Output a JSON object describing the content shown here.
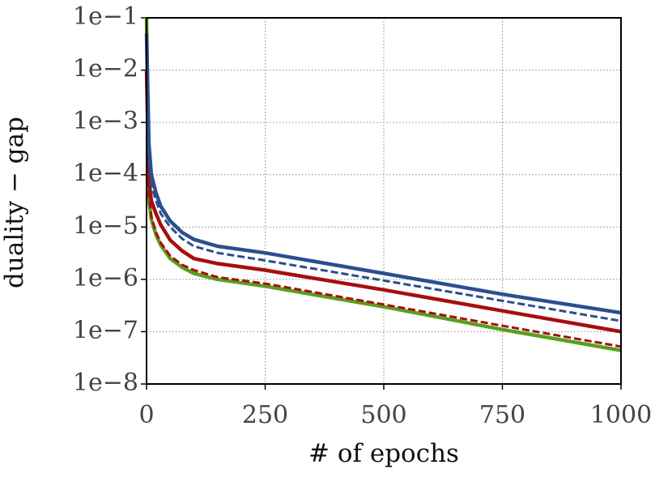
{
  "chart_data": {
    "type": "line",
    "xlabel": "# of epochs",
    "ylabel": "duality − gap",
    "yscale": "log",
    "grid": true,
    "x": [
      0,
      5,
      10,
      20,
      30,
      50,
      75,
      100,
      150,
      250,
      500,
      750,
      1000
    ],
    "series": [
      {
        "color": "#5a9e1e",
        "dash": false,
        "values": [
          0.1,
          3.5e-05,
          1.4e-05,
          7.1e-06,
          4.5e-06,
          2.5e-06,
          1.7e-06,
          1.3e-06,
          1e-06,
          7.4e-07,
          3e-07,
          1.1e-07,
          4.4e-08
        ]
      },
      {
        "color": "#a50f0f",
        "dash": true,
        "values": [
          0.0032,
          4e-05,
          1.6e-05,
          7.9e-06,
          5e-06,
          2.8e-06,
          1.9e-06,
          1.5e-06,
          1.1e-06,
          8.3e-07,
          3.3e-07,
          1.3e-07,
          5.2e-08
        ]
      },
      {
        "color": "#a50f0f",
        "dash": false,
        "values": [
          0.01,
          7.9e-05,
          3.2e-05,
          1.8e-05,
          1.1e-05,
          5.6e-06,
          3.5e-06,
          2.5e-06,
          2e-06,
          1.5e-06,
          6.3e-07,
          2.5e-07,
          1e-07
        ]
      },
      {
        "color": "#2a4f8f",
        "dash": true,
        "values": [
          0.032,
          0.0002,
          6.3e-05,
          3.2e-05,
          1.8e-05,
          1e-05,
          6e-06,
          4.3e-06,
          3.2e-06,
          2.3e-06,
          9.5e-07,
          3.9e-07,
          1.6e-07
        ]
      },
      {
        "color": "#2a4f8f",
        "dash": false,
        "values": [
          0.05,
          0.0004,
          0.0001,
          4.5e-05,
          2.5e-05,
          1.3e-05,
          7.9e-06,
          5.8e-06,
          4.3e-06,
          3.2e-06,
          1.3e-06,
          5.2e-07,
          2.3e-07
        ]
      }
    ],
    "xlim": [
      0,
      1000
    ],
    "xticks": [
      0,
      250,
      500,
      750,
      1000
    ],
    "ylim": [
      1e-08,
      0.1
    ],
    "yticks": [
      {
        "value": 1e-08,
        "label": "1e−8"
      },
      {
        "value": 1e-07,
        "label": "1e−7"
      },
      {
        "value": 1e-06,
        "label": "1e−6"
      },
      {
        "value": 1e-05,
        "label": "1e−5"
      },
      {
        "value": 0.0001,
        "label": "1e−4"
      },
      {
        "value": 0.001,
        "label": "1e−3"
      },
      {
        "value": 0.01,
        "label": "1e−2"
      },
      {
        "value": 0.1,
        "label": "1e−1"
      }
    ]
  }
}
